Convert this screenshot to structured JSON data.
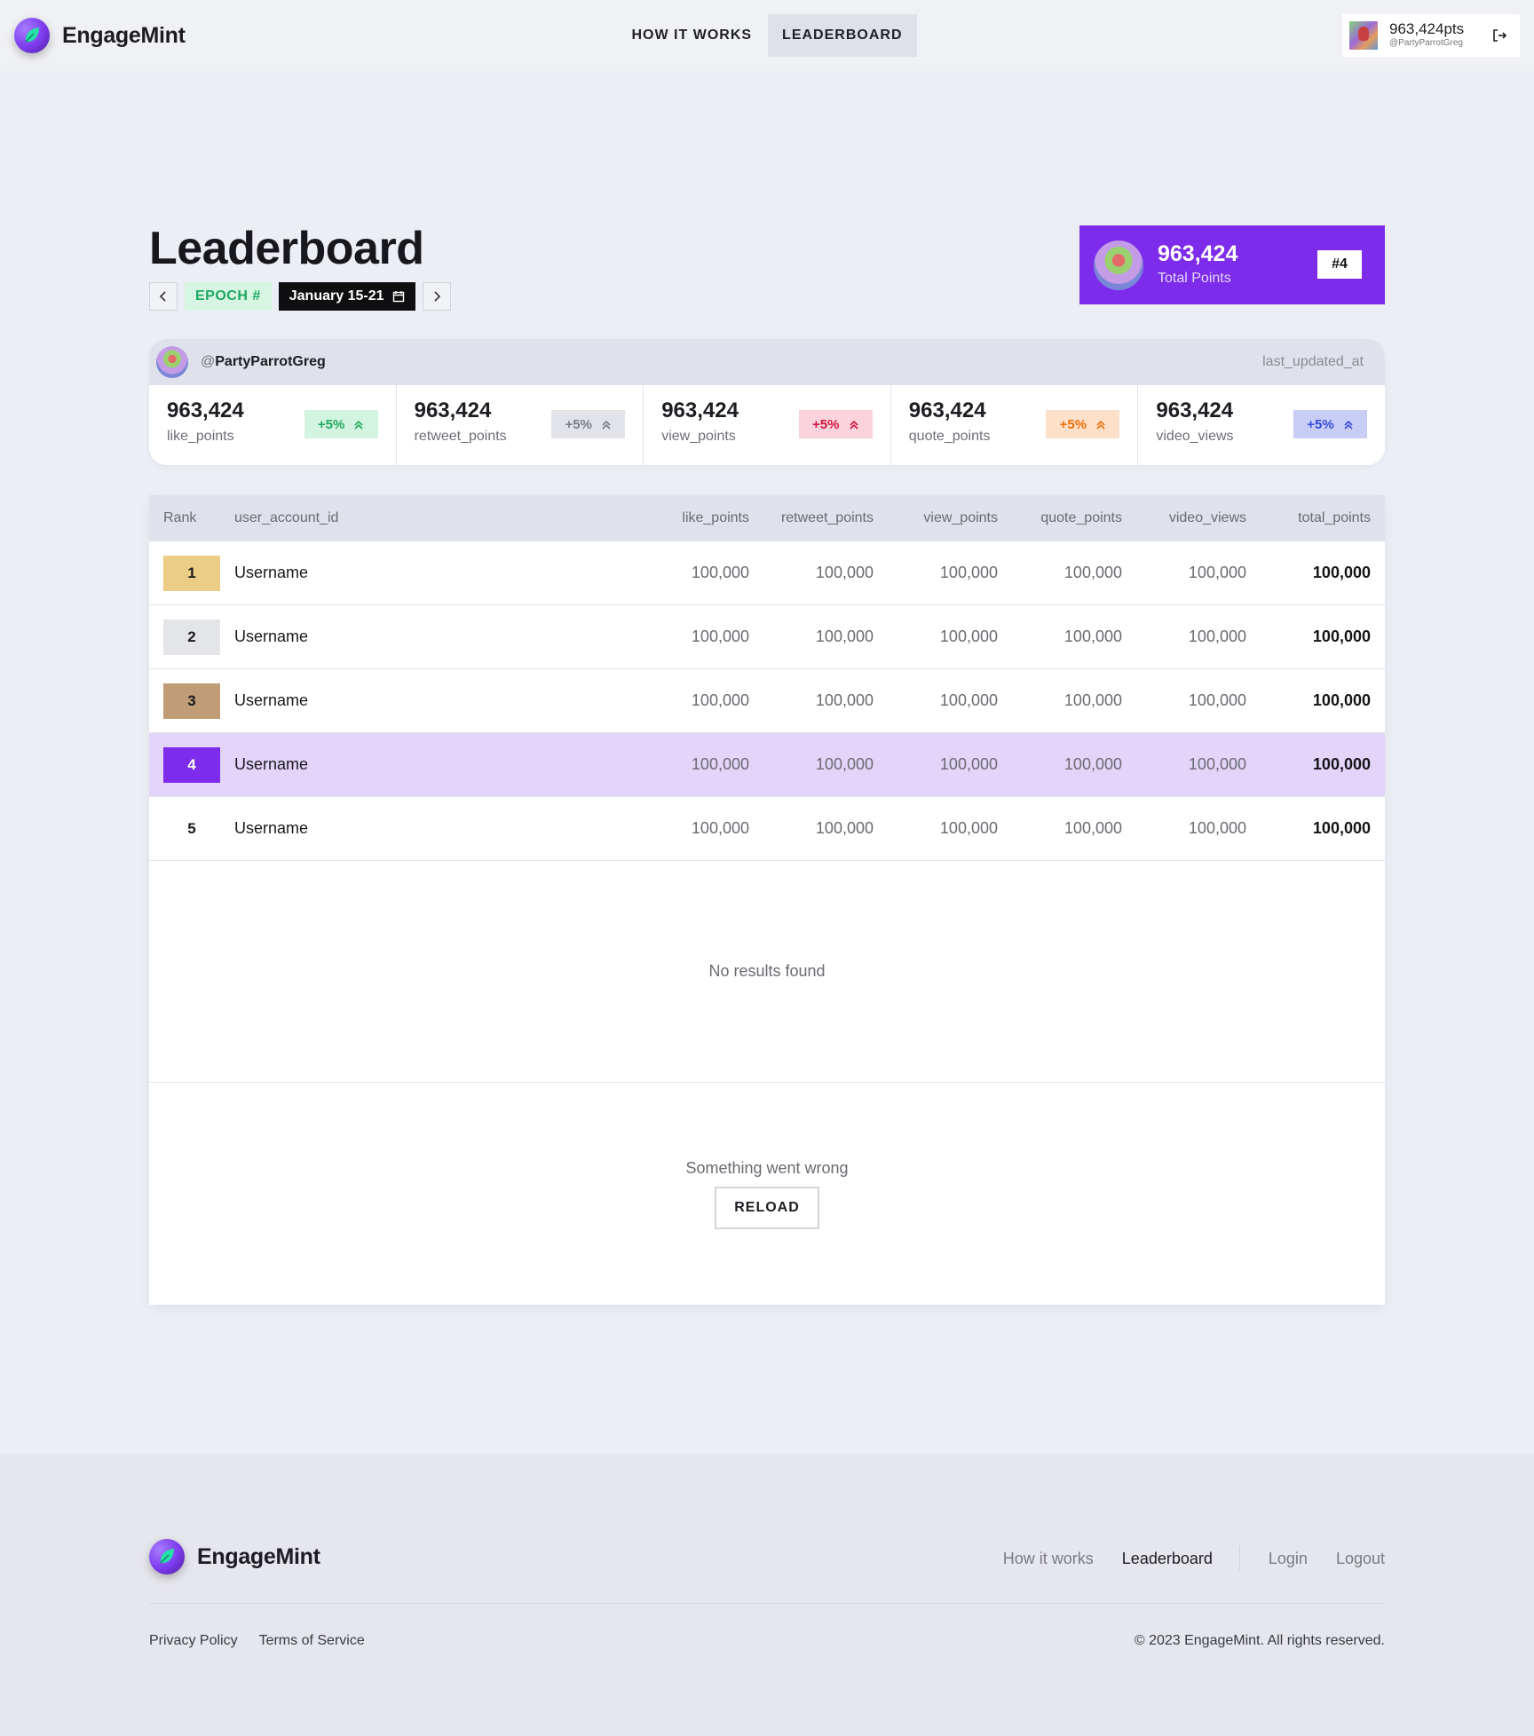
{
  "app": {
    "name": "EngageMint"
  },
  "nav": {
    "how_it_works": "HOW IT WORKS",
    "leaderboard": "LEADERBOARD"
  },
  "user_chip": {
    "points": "963,424pts",
    "handle": "@PartyParrotGreg"
  },
  "page": {
    "title": "Leaderboard",
    "epoch": "EPOCH #",
    "date_range": "January 15-21"
  },
  "total_card": {
    "points": "963,424",
    "label": "Total Points",
    "rank": "#4"
  },
  "stats": {
    "handle_prefix": "@",
    "handle": "PartyParrotGreg",
    "last_updated": "last_updated_at",
    "items": [
      {
        "value": "963,424",
        "label": "like_points",
        "delta": "+5%",
        "bg": "#d3f4e0",
        "fg": "#22a95f"
      },
      {
        "value": "963,424",
        "label": "retweet_points",
        "delta": "+5%",
        "bg": "#e1e3e9",
        "fg": "#7b7c83"
      },
      {
        "value": "963,424",
        "label": "view_points",
        "delta": "+5%",
        "bg": "#fbd3dc",
        "fg": "#d3153d"
      },
      {
        "value": "963,424",
        "label": "quote_points",
        "delta": "+5%",
        "bg": "#fde0c9",
        "fg": "#ef6f0a"
      },
      {
        "value": "963,424",
        "label": "video_views",
        "delta": "+5%",
        "bg": "#c8cdf6",
        "fg": "#3a4bd6"
      }
    ]
  },
  "table": {
    "headers": {
      "rank": "Rank",
      "user": "user_account_id",
      "like": "like_points",
      "retweet": "retweet_points",
      "view": "view_points",
      "quote": "quote_points",
      "video": "video_views",
      "total": "total_points"
    },
    "rows": [
      {
        "rank": "1",
        "user": "Username",
        "like": "100,000",
        "retweet": "100,000",
        "view": "100,000",
        "quote": "100,000",
        "video": "100,000",
        "total": "100,000",
        "badge_bg": "#ebcd85",
        "badge_fg": "#1a1a1f"
      },
      {
        "rank": "2",
        "user": "Username",
        "like": "100,000",
        "retweet": "100,000",
        "view": "100,000",
        "quote": "100,000",
        "video": "100,000",
        "total": "100,000",
        "badge_bg": "#e4e5e9",
        "badge_fg": "#1a1a1f"
      },
      {
        "rank": "3",
        "user": "Username",
        "like": "100,000",
        "retweet": "100,000",
        "view": "100,000",
        "quote": "100,000",
        "video": "100,000",
        "total": "100,000",
        "badge_bg": "#c09c77",
        "badge_fg": "#1a1a1f"
      },
      {
        "rank": "4",
        "user": "Username",
        "like": "100,000",
        "retweet": "100,000",
        "view": "100,000",
        "quote": "100,000",
        "video": "100,000",
        "total": "100,000",
        "badge_bg": "#7c2cea",
        "badge_fg": "#ffffff"
      },
      {
        "rank": "5",
        "user": "Username",
        "like": "100,000",
        "retweet": "100,000",
        "view": "100,000",
        "quote": "100,000",
        "video": "100,000",
        "total": "100,000",
        "badge_bg": "transparent",
        "badge_fg": "#1a1a1f"
      }
    ],
    "empty_text": "No results found",
    "error_text": "Something went wrong",
    "reload_label": "RELOAD"
  },
  "footer": {
    "links": {
      "how_it_works": "How it works",
      "leaderboard": "Leaderboard",
      "login": "Login",
      "logout": "Logout"
    },
    "privacy": "Privacy Policy",
    "terms": "Terms of Service",
    "copyright": "© 2023 EngageMint. All rights reserved."
  },
  "colors": {
    "accent": "#7c2cea",
    "highlight_row": "#e3d4fa"
  }
}
